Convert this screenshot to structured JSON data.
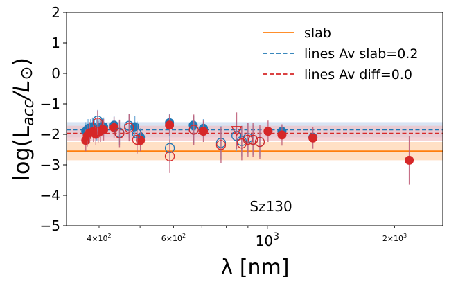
{
  "chart_data": {
    "type": "scatter",
    "title": "",
    "xlabel": "λ [nm]",
    "ylabel_parts": {
      "main": "log(L",
      "sub": "acc",
      "tail": "/L",
      "odot": "⊙",
      "close": ")"
    },
    "xscale": "log",
    "xlim": [
      335,
      2600
    ],
    "ylim": [
      -5,
      2
    ],
    "yticks": [
      2,
      1,
      0,
      -1,
      -2,
      -3,
      -4,
      -5
    ],
    "ytick_labels": [
      "2",
      "1",
      "0",
      "−1",
      "−2",
      "−3",
      "−4",
      "−5"
    ],
    "xticks": [
      {
        "value": 400,
        "mantissa": "4×10",
        "exp": "2",
        "size": "small"
      },
      {
        "value": 600,
        "mantissa": "6×10",
        "exp": "2",
        "size": "small"
      },
      {
        "value": 1000,
        "mantissa": "10",
        "exp": "3",
        "size": "large"
      },
      {
        "value": 2000,
        "mantissa": "2×10",
        "exp": "3",
        "size": "small"
      }
    ],
    "annotation": "Sz130",
    "reference_lines": [
      {
        "name": "slab",
        "y": -2.55,
        "band": [
          -2.85,
          -2.25
        ],
        "color": "#ff7f0e",
        "style": "solid",
        "band_color": "#ffd3ad"
      },
      {
        "name": "lines Av slab=0.2",
        "y": -1.85,
        "band": [
          -2.1,
          -1.6
        ],
        "color": "#1f77b4",
        "style": "dashed",
        "band_color": "#c7d8ee"
      },
      {
        "name": "lines Av diff=0.0",
        "y": -1.97,
        "band": [
          -2.22,
          -1.72
        ],
        "color": "#d62728",
        "style": "dashed",
        "band_color": "#efc2c6"
      }
    ],
    "series": [
      {
        "kind": "blue_filled",
        "color": "#1f77b4",
        "points": [
          {
            "x": 372,
            "y": -1.9,
            "err": 0.3
          },
          {
            "x": 375,
            "y": -1.85,
            "err": 0.35
          },
          {
            "x": 378,
            "y": -1.8,
            "err": 0.3
          },
          {
            "x": 382,
            "y": -1.8,
            "err": 0.3
          },
          {
            "x": 386,
            "y": -1.75,
            "err": 0.3
          },
          {
            "x": 390,
            "y": -1.8,
            "err": 0.3
          },
          {
            "x": 395,
            "y": -1.85,
            "err": 0.35
          },
          {
            "x": 400,
            "y": -1.8,
            "err": 0.3
          },
          {
            "x": 405,
            "y": -1.75,
            "err": 0.3
          },
          {
            "x": 410,
            "y": -1.75,
            "err": 0.3
          },
          {
            "x": 434,
            "y": -1.7,
            "err": 0.3
          },
          {
            "x": 486,
            "y": -1.75,
            "err": 0.35
          },
          {
            "x": 501,
            "y": -2.1,
            "err": 0.3
          },
          {
            "x": 587,
            "y": -1.62,
            "err": 0.3
          },
          {
            "x": 668,
            "y": -1.7,
            "err": 0.3
          },
          {
            "x": 706,
            "y": -1.8,
            "err": 0.3
          },
          {
            "x": 1083,
            "y": -1.9,
            "err": 0.2
          },
          {
            "x": 1282,
            "y": -2.1,
            "err": 0.2
          }
        ]
      },
      {
        "kind": "red_filled",
        "color": "#d62728",
        "points": [
          {
            "x": 372,
            "y": -2.2,
            "err": 0.35
          },
          {
            "x": 375,
            "y": -2.05,
            "err": 0.35
          },
          {
            "x": 380,
            "y": -1.95,
            "err": 0.35
          },
          {
            "x": 388,
            "y": -1.9,
            "err": 0.35
          },
          {
            "x": 393,
            "y": -2.0,
            "err": 0.35
          },
          {
            "x": 398,
            "y": -1.92,
            "err": 0.35
          },
          {
            "x": 403,
            "y": -1.9,
            "err": 0.35
          },
          {
            "x": 410,
            "y": -1.85,
            "err": 0.35
          },
          {
            "x": 434,
            "y": -1.78,
            "err": 0.35
          },
          {
            "x": 501,
            "y": -2.2,
            "err": 0.35
          },
          {
            "x": 587,
            "y": -1.7,
            "err": 0.35
          },
          {
            "x": 706,
            "y": -1.9,
            "err": 0.35
          },
          {
            "x": 1004,
            "y": -1.9,
            "err": 0.35
          },
          {
            "x": 1083,
            "y": -2.02,
            "err": 0.35
          },
          {
            "x": 1282,
            "y": -2.12,
            "err": 0.35
          },
          {
            "x": 2166,
            "y": -2.85,
            "err": 0.8
          }
        ]
      },
      {
        "kind": "blue_open",
        "color": "#1f77b4",
        "points": [
          {
            "x": 397,
            "y": -1.55,
            "err": 0.35
          },
          {
            "x": 447,
            "y": -1.95,
            "err": 0.4
          },
          {
            "x": 471,
            "y": -1.72,
            "err": 0.4
          },
          {
            "x": 492,
            "y": -1.98,
            "err": 0.4
          },
          {
            "x": 588,
            "y": -2.45,
            "err": 0.5
          },
          {
            "x": 670,
            "y": -1.85,
            "err": 0.45
          },
          {
            "x": 777,
            "y": -2.28,
            "err": 0.55
          },
          {
            "x": 845,
            "y": -2.05,
            "err": 0.5
          },
          {
            "x": 870,
            "y": -2.22,
            "err": 0.5
          },
          {
            "x": 900,
            "y": -2.12,
            "err": 0.5
          },
          {
            "x": 925,
            "y": -2.18,
            "err": 0.5
          },
          {
            "x": 960,
            "y": -2.25,
            "err": 0.5
          }
        ]
      },
      {
        "kind": "red_open",
        "color": "#d62728",
        "points": [
          {
            "x": 397,
            "y": -1.62,
            "err": 0.4
          },
          {
            "x": 447,
            "y": -1.97,
            "err": 0.45
          },
          {
            "x": 471,
            "y": -1.78,
            "err": 0.45
          },
          {
            "x": 492,
            "y": -2.18,
            "err": 0.45
          },
          {
            "x": 588,
            "y": -2.72,
            "err": 0.55
          },
          {
            "x": 670,
            "y": -1.85,
            "err": 0.5
          },
          {
            "x": 777,
            "y": -2.35,
            "err": 0.6
          },
          {
            "x": 870,
            "y": -2.3,
            "err": 0.55
          },
          {
            "x": 900,
            "y": -2.18,
            "err": 0.55
          },
          {
            "x": 925,
            "y": -2.18,
            "err": 0.55
          },
          {
            "x": 960,
            "y": -2.25,
            "err": 0.55
          }
        ]
      },
      {
        "kind": "red_open_triangle",
        "color": "#d62728",
        "points": [
          {
            "x": 846,
            "y": -1.88,
            "err": 0.6
          }
        ]
      }
    ],
    "legend": {
      "placement": "top-right",
      "items": [
        {
          "label": "slab",
          "color": "#ff7f0e",
          "style": "solid"
        },
        {
          "label": "lines Av slab=0.2",
          "color": "#1f77b4",
          "style": "dashed"
        },
        {
          "label": "lines Av diff=0.0",
          "color": "#d62728",
          "style": "dashed"
        }
      ]
    }
  }
}
